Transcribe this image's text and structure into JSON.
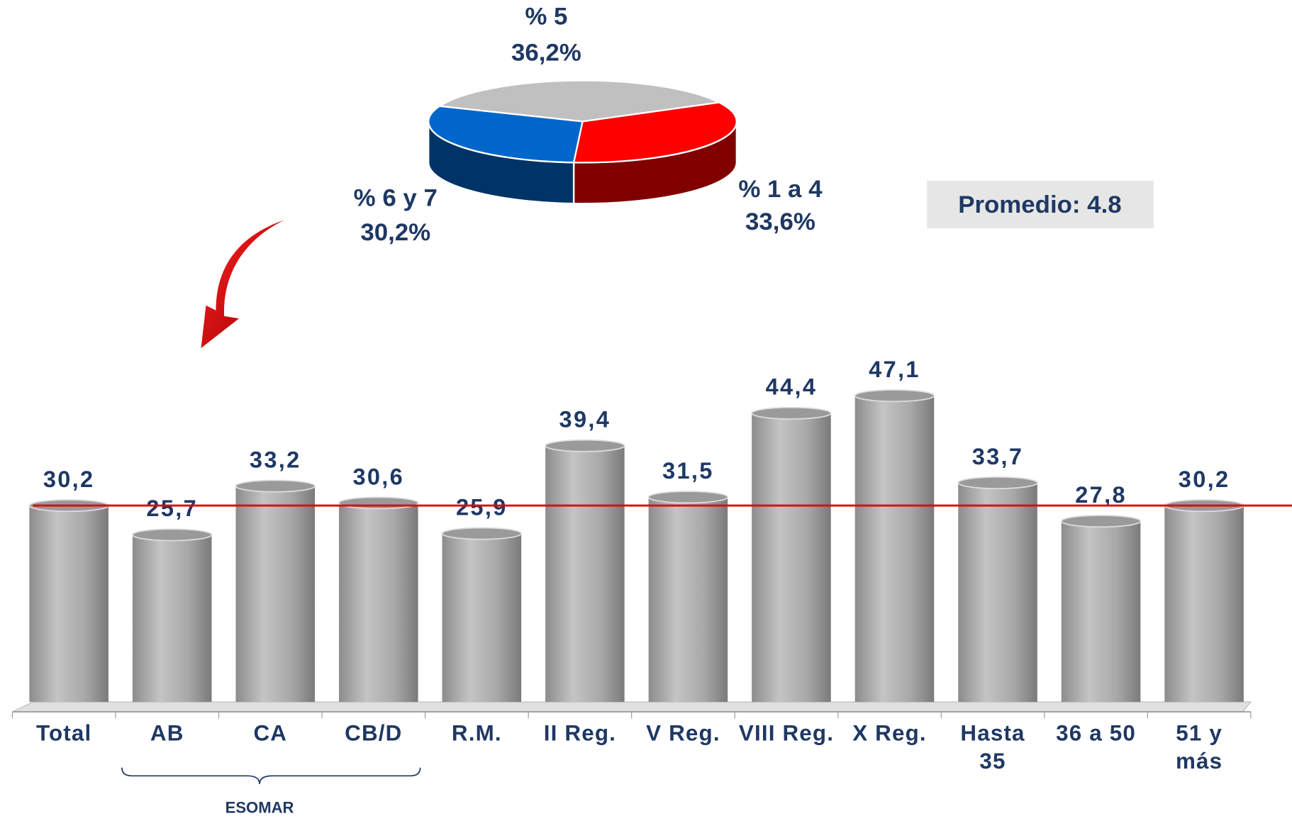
{
  "chart_data": [
    {
      "type": "pie",
      "categories": [
        "% 5",
        "% 1 a 4",
        "% 6 y 7"
      ],
      "values": [
        36.2,
        33.6,
        30.2
      ],
      "value_labels": [
        "36,2%",
        "33,6%",
        "30,2%"
      ],
      "colors": [
        "#c0c0c0",
        "#ff0000",
        "#0066cc"
      ]
    },
    {
      "type": "bar",
      "categories": [
        "Total",
        "AB",
        "CA",
        "CB/D",
        "R.M.",
        "II Reg.",
        "V Reg.",
        "VIII Reg.",
        "X Reg.",
        "Hasta 35",
        "36 a 50",
        "51 y más"
      ],
      "values": [
        30.2,
        25.7,
        33.2,
        30.6,
        25.9,
        39.4,
        31.5,
        44.4,
        47.1,
        33.7,
        27.8,
        30.2
      ],
      "value_labels": [
        "30,2",
        "25,7",
        "33,2",
        "30,6",
        "25,9",
        "39,4",
        "31,5",
        "44,4",
        "47,1",
        "33,7",
        "27,8",
        "30,2"
      ],
      "color": "#a6a6a6",
      "ylim": [
        0,
        50
      ],
      "annotation": "Promedio: 4.8",
      "group_label": "ESOMAR"
    }
  ]
}
